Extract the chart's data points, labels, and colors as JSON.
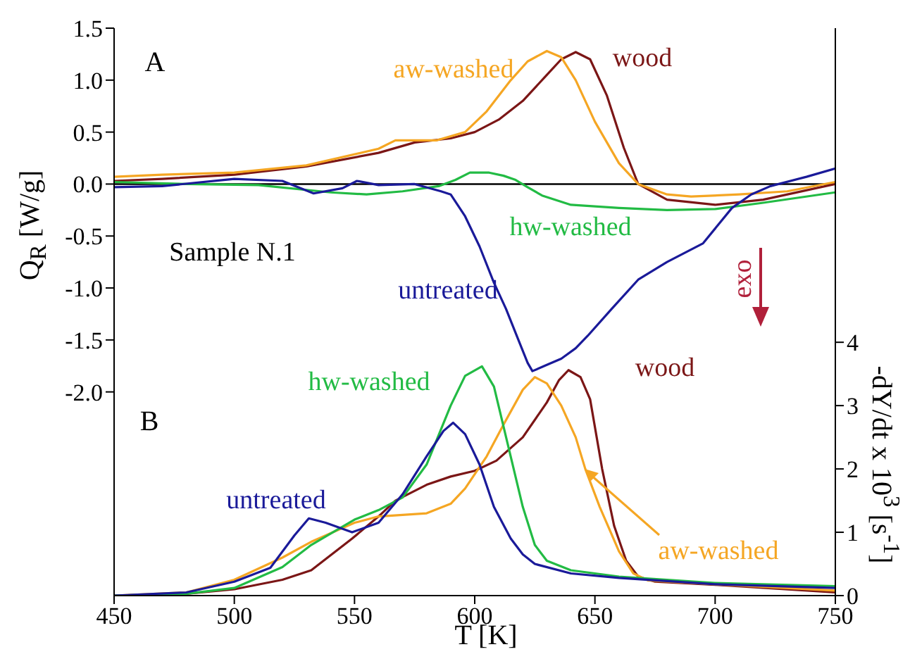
{
  "chart_data": {
    "type": "line",
    "xlabel": "T [K]",
    "ylabel": "Q$_{R}$ [W/g]",
    "y2label": "-dY/dt x 10$^{3}$ [s$^{-1}$]",
    "annotations": [
      "A",
      "B",
      "Sample N.1",
      "exo"
    ],
    "xlim": [
      450,
      750
    ],
    "xticks": [
      450,
      500,
      550,
      600,
      650,
      700,
      750
    ],
    "ylim": [
      -3.96,
      1.5
    ],
    "yticks": [
      {
        "value": -2,
        "label": "-2.0"
      },
      -1.5,
      {
        "value": -1,
        "label": "-1.0"
      },
      -0.5,
      {
        "value": 0,
        "label": "0.0"
      },
      0.5,
      {
        "value": 1,
        "label": "1.0"
      },
      1.5
    ],
    "y2lim": [
      0,
      8.96
    ],
    "y2ticks": [
      0,
      1,
      2,
      3,
      4
    ],
    "ref_lines": [
      {
        "axis": "y",
        "value": 0,
        "color": "#000000"
      }
    ],
    "series": [
      {
        "name": "wood",
        "color": "#7b1616",
        "x": [
          450,
          470,
          500,
          530,
          560,
          575,
          590,
          600,
          610,
          620,
          630,
          636,
          642,
          648,
          655,
          662,
          668,
          680,
          700,
          720,
          750
        ],
        "values": [
          0.03,
          0.05,
          0.09,
          0.17,
          0.3,
          0.4,
          0.44,
          0.5,
          0.62,
          0.8,
          1.05,
          1.2,
          1.27,
          1.2,
          0.85,
          0.35,
          0.0,
          -0.15,
          -0.2,
          -0.15,
          0.0
        ]
      },
      {
        "name": "aw-washed",
        "color": "#f5a623",
        "x": [
          450,
          470,
          500,
          530,
          560,
          567,
          584,
          596,
          605,
          615,
          622,
          630,
          636,
          642,
          650,
          660,
          668,
          680,
          690,
          710,
          730,
          750
        ],
        "values": [
          0.07,
          0.09,
          0.11,
          0.18,
          0.34,
          0.42,
          0.42,
          0.5,
          0.7,
          1.0,
          1.18,
          1.28,
          1.22,
          1.0,
          0.6,
          0.2,
          0.0,
          -0.1,
          -0.12,
          -0.1,
          -0.07,
          0.02
        ]
      },
      {
        "name": "hw-washed",
        "color": "#22bb44",
        "x": [
          450,
          480,
          510,
          540,
          555,
          570,
          585,
          592,
          598,
          606,
          612,
          617,
          622,
          628,
          640,
          660,
          680,
          700,
          720,
          750
        ],
        "values": [
          0.02,
          0.0,
          -0.01,
          -0.08,
          -0.1,
          -0.07,
          -0.02,
          0.04,
          0.11,
          0.11,
          0.08,
          0.04,
          -0.03,
          -0.11,
          -0.2,
          -0.23,
          -0.25,
          -0.24,
          -0.18,
          -0.08
        ]
      },
      {
        "name": "untreated",
        "color": "#1a1a99",
        "x": [
          450,
          470,
          500,
          520,
          533,
          545,
          551,
          560,
          575,
          586,
          590,
          596,
          602,
          608,
          613,
          618,
          622,
          624,
          630,
          636,
          642,
          647,
          657,
          668,
          680,
          695,
          707,
          715,
          723,
          738,
          750
        ],
        "values": [
          -0.03,
          -0.02,
          0.05,
          0.03,
          -0.09,
          -0.04,
          0.03,
          -0.01,
          0.0,
          -0.07,
          -0.1,
          -0.31,
          -0.6,
          -0.95,
          -1.2,
          -1.49,
          -1.72,
          -1.8,
          -1.74,
          -1.68,
          -1.58,
          -1.46,
          -1.2,
          -0.92,
          -0.75,
          -0.57,
          -0.23,
          -0.1,
          -0.02,
          0.07,
          0.15
        ]
      },
      {
        "name": "wood",
        "color": "#7b1616",
        "axis": "y2",
        "x": [
          450,
          480,
          500,
          520,
          532,
          549,
          560,
          567,
          580,
          590,
          600,
          609,
          620,
          630,
          635,
          639,
          644,
          648,
          653,
          658,
          663,
          668,
          675,
          700,
          750
        ],
        "values": [
          0.0,
          0.03,
          0.1,
          0.25,
          0.4,
          0.9,
          1.25,
          1.5,
          1.75,
          1.88,
          1.97,
          2.13,
          2.5,
          3.05,
          3.4,
          3.56,
          3.45,
          3.1,
          2.0,
          1.1,
          0.55,
          0.3,
          0.22,
          0.17,
          0.05
        ]
      },
      {
        "name": "aw-washed",
        "color": "#f5a623",
        "axis": "y2",
        "x": [
          450,
          480,
          500,
          520,
          532,
          550,
          560,
          580,
          590,
          596,
          605,
          612,
          620,
          625,
          630,
          636,
          642,
          646,
          652,
          660,
          666,
          672,
          700,
          750
        ],
        "values": [
          0.0,
          0.05,
          0.25,
          0.6,
          0.85,
          1.15,
          1.25,
          1.3,
          1.45,
          1.69,
          2.2,
          2.7,
          3.25,
          3.45,
          3.35,
          3.0,
          2.5,
          2.0,
          1.4,
          0.7,
          0.35,
          0.24,
          0.18,
          0.08
        ]
      },
      {
        "name": "hw-washed",
        "color": "#22bb44",
        "axis": "y2",
        "x": [
          450,
          480,
          500,
          520,
          532,
          550,
          560,
          570,
          580,
          590,
          596,
          603,
          608,
          614,
          620,
          625,
          630,
          640,
          660,
          700,
          750
        ],
        "values": [
          0.0,
          0.03,
          0.12,
          0.45,
          0.8,
          1.2,
          1.35,
          1.55,
          2.07,
          3.0,
          3.47,
          3.62,
          3.3,
          2.35,
          1.4,
          0.8,
          0.55,
          0.4,
          0.3,
          0.2,
          0.15
        ]
      },
      {
        "name": "untreated",
        "color": "#1a1a99",
        "axis": "y2",
        "x": [
          450,
          480,
          500,
          515,
          525,
          531,
          538,
          549,
          560,
          570,
          580,
          587,
          591,
          596,
          602,
          608,
          615,
          620,
          625,
          640,
          660,
          700,
          750
        ],
        "values": [
          0.0,
          0.05,
          0.22,
          0.44,
          0.95,
          1.22,
          1.15,
          1.0,
          1.15,
          1.6,
          2.2,
          2.6,
          2.73,
          2.55,
          2.07,
          1.4,
          0.9,
          0.65,
          0.5,
          0.35,
          0.28,
          0.18,
          0.12
        ]
      }
    ]
  }
}
